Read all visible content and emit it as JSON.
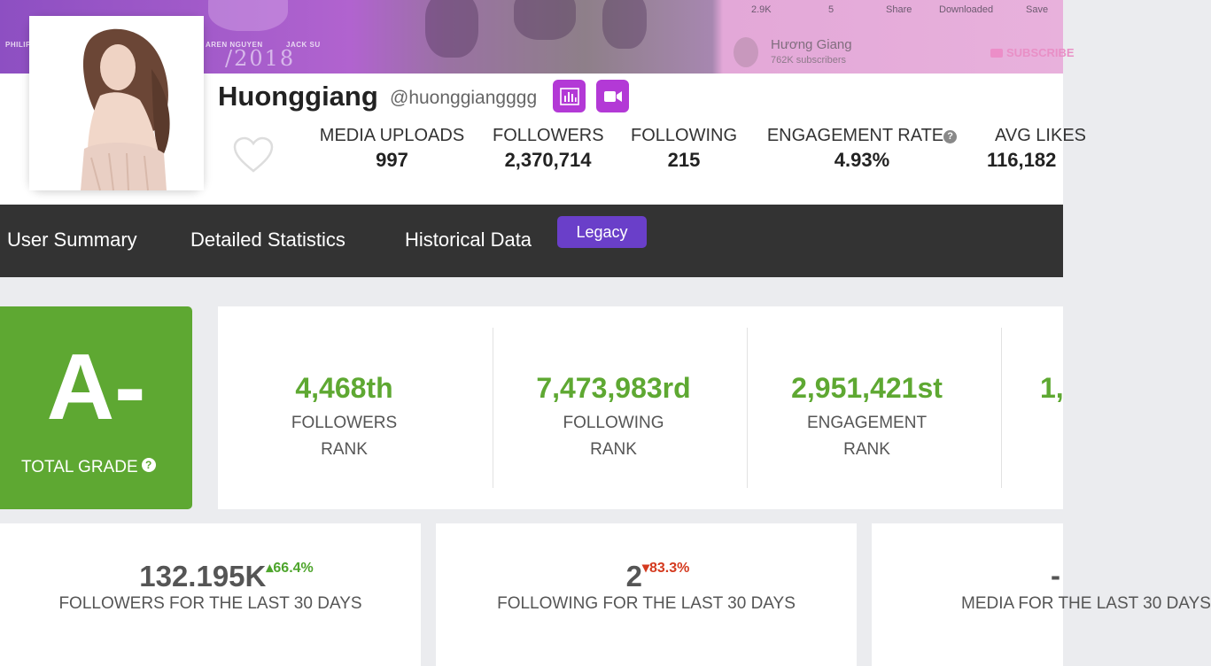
{
  "banner": {
    "credits": [
      "PHILIP",
      "AREN NGUYEN",
      "JACK SU"
    ],
    "year": "/2018",
    "yt_stats": [
      "2.9K",
      "5",
      "Share",
      "Downloaded",
      "Save"
    ],
    "yt_channel_name": "Hương Giang",
    "yt_subscribers": "762K subscribers",
    "yt_subscribe_label": "SUBSCRIBE"
  },
  "profile": {
    "display_name": "Huonggiang",
    "handle": "@huonggiangggg",
    "icons": [
      "bar-chart-icon",
      "video-camera-icon",
      "heart-icon",
      "question-icon"
    ],
    "stats": [
      {
        "label": "MEDIA UPLOADS",
        "value": "997"
      },
      {
        "label": "FOLLOWERS",
        "value": "2,370,714"
      },
      {
        "label": "FOLLOWING",
        "value": "215"
      },
      {
        "label": "ENGAGEMENT RATE",
        "value": "4.93%"
      },
      {
        "label": "AVG LIKES",
        "value": "116,182"
      }
    ]
  },
  "nav": {
    "tabs": [
      "User Summary",
      "Detailed Statistics",
      "Historical Data"
    ],
    "legacy_label": "Legacy",
    "bg_color": "#333333",
    "legacy_color": "#6a3fc9"
  },
  "grade": {
    "letter": "A-",
    "label": "TOTAL GRADE",
    "help": "?",
    "color": "#5ea832"
  },
  "ranks": [
    {
      "value": "4,468th",
      "label1": "FOLLOWERS",
      "label2": "RANK"
    },
    {
      "value": "7,473,983rd",
      "label1": "FOLLOWING",
      "label2": "RANK"
    },
    {
      "value": "2,951,421st",
      "label1": "ENGAGEMENT",
      "label2": "RANK"
    },
    {
      "value": "1,",
      "label1": "",
      "label2": ""
    }
  ],
  "cards": [
    {
      "value": "132.195K",
      "change": "66.4%",
      "direction": "up",
      "label": "FOLLOWERS FOR THE LAST 30 DAYS"
    },
    {
      "value": "2",
      "change": "83.3%",
      "direction": "down",
      "label": "FOLLOWING FOR THE LAST 30 DAYS"
    },
    {
      "value": "-",
      "change": "",
      "direction": "",
      "label": "MEDIA FOR THE LAST 30 DAYS"
    }
  ]
}
